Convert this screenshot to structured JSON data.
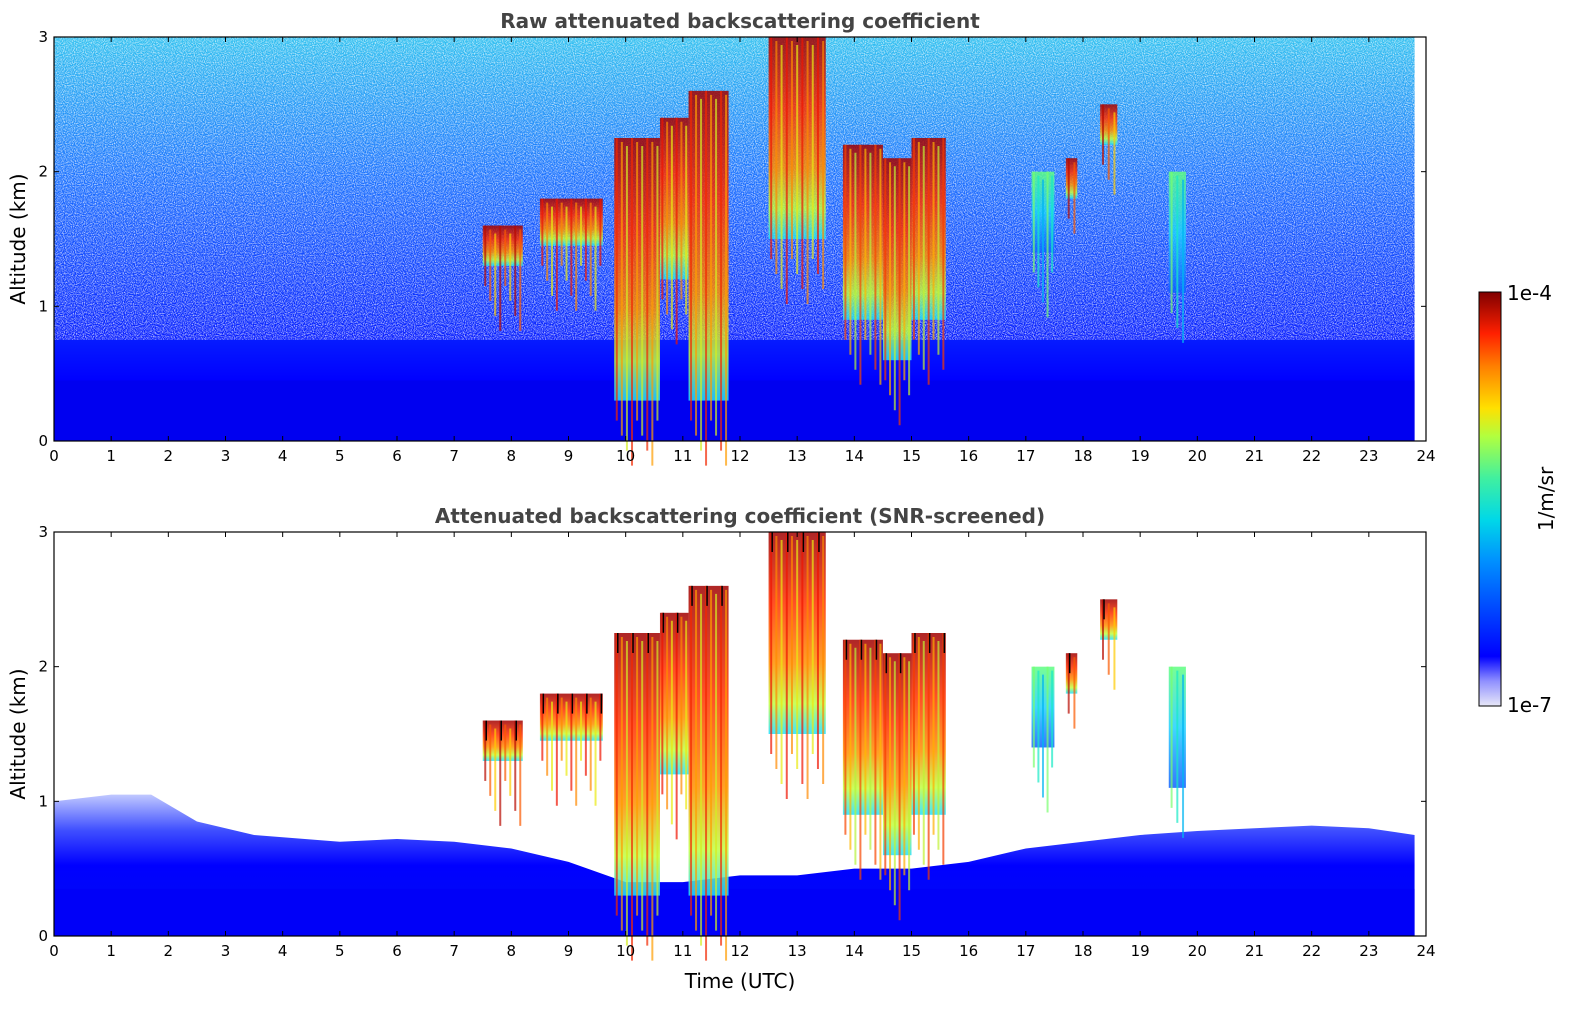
{
  "chart_data": [
    {
      "type": "heatmap",
      "title": "Raw attenuated backscattering coefficient",
      "xlabel": "",
      "ylabel": "Altitude (km)",
      "xlim": [
        0,
        24
      ],
      "ylim": [
        0,
        3
      ],
      "xticks": [
        "0",
        "1",
        "2",
        "3",
        "4",
        "5",
        "6",
        "7",
        "8",
        "9",
        "10",
        "11",
        "12",
        "13",
        "14",
        "15",
        "16",
        "17",
        "18",
        "19",
        "20",
        "21",
        "22",
        "23",
        "24"
      ],
      "yticks": [
        "0",
        "1",
        "2",
        "3"
      ],
      "features": [
        {
          "x_start": 7.5,
          "x_end": 8.2,
          "alt_bottom": 1.3,
          "alt_top": 1.6,
          "level": 0.95
        },
        {
          "x_start": 8.5,
          "x_end": 9.6,
          "alt_bottom": 1.45,
          "alt_top": 1.8,
          "level": 0.9
        },
        {
          "x_start": 9.8,
          "x_end": 10.6,
          "alt_bottom": 0.3,
          "alt_top": 2.25,
          "level": 0.88
        },
        {
          "x_start": 10.6,
          "x_end": 11.1,
          "alt_bottom": 1.2,
          "alt_top": 2.4,
          "level": 0.9
        },
        {
          "x_start": 11.1,
          "x_end": 11.8,
          "alt_bottom": 0.3,
          "alt_top": 2.6,
          "level": 0.88
        },
        {
          "x_start": 12.5,
          "x_end": 13.5,
          "alt_bottom": 1.5,
          "alt_top": 3.0,
          "level": 0.9
        },
        {
          "x_start": 13.8,
          "x_end": 14.5,
          "alt_bottom": 0.9,
          "alt_top": 2.2,
          "level": 0.85
        },
        {
          "x_start": 14.5,
          "x_end": 15.0,
          "alt_bottom": 0.6,
          "alt_top": 2.1,
          "level": 0.86
        },
        {
          "x_start": 15.0,
          "x_end": 15.6,
          "alt_bottom": 0.9,
          "alt_top": 2.25,
          "level": 0.86
        },
        {
          "x_start": 17.1,
          "x_end": 17.5,
          "alt_bottom": 1.4,
          "alt_top": 2.0,
          "level": 0.55
        },
        {
          "x_start": 17.7,
          "x_end": 17.9,
          "alt_bottom": 1.8,
          "alt_top": 2.1,
          "level": 0.95
        },
        {
          "x_start": 18.3,
          "x_end": 18.6,
          "alt_bottom": 2.2,
          "alt_top": 2.5,
          "level": 0.95
        },
        {
          "x_start": 19.5,
          "x_end": 19.8,
          "alt_bottom": 1.1,
          "alt_top": 2.0,
          "level": 0.55
        }
      ]
    },
    {
      "type": "heatmap",
      "title": "Attenuated backscattering coefficient (SNR-screened)",
      "xlabel": "Time (UTC)",
      "ylabel": "Altitude (km)",
      "xlim": [
        0,
        24
      ],
      "ylim": [
        0,
        3
      ],
      "xticks": [
        "0",
        "1",
        "2",
        "3",
        "4",
        "5",
        "6",
        "7",
        "8",
        "9",
        "10",
        "11",
        "12",
        "13",
        "14",
        "15",
        "16",
        "17",
        "18",
        "19",
        "20",
        "21",
        "22",
        "23",
        "24"
      ],
      "yticks": [
        "0",
        "1",
        "2",
        "3"
      ],
      "boundary_layer_top_km": [
        [
          0,
          1.0
        ],
        [
          1,
          1.05
        ],
        [
          1.7,
          1.05
        ],
        [
          2.5,
          0.85
        ],
        [
          3.5,
          0.75
        ],
        [
          5,
          0.7
        ],
        [
          6,
          0.72
        ],
        [
          7,
          0.7
        ],
        [
          8,
          0.65
        ],
        [
          9,
          0.55
        ],
        [
          10,
          0.4
        ],
        [
          11,
          0.4
        ],
        [
          12,
          0.45
        ],
        [
          13,
          0.45
        ],
        [
          14,
          0.5
        ],
        [
          15,
          0.5
        ],
        [
          16,
          0.55
        ],
        [
          17,
          0.65
        ],
        [
          18,
          0.7
        ],
        [
          19,
          0.75
        ],
        [
          20,
          0.78
        ],
        [
          21,
          0.8
        ],
        [
          22,
          0.82
        ],
        [
          23,
          0.8
        ],
        [
          23.8,
          0.75
        ]
      ]
    }
  ],
  "colorbar": {
    "label": "1/m/sr",
    "max_label": "1e-4",
    "min_label": "1e-7",
    "colormap": "jet"
  }
}
